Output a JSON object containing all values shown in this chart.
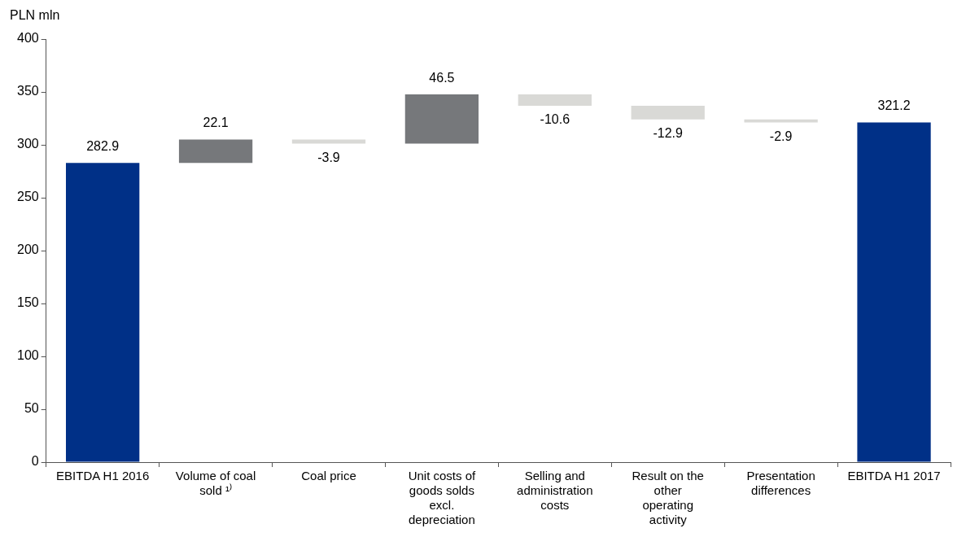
{
  "chart_data": {
    "type": "bar",
    "ylabel": "PLN mln",
    "categories": [
      "EBITDA H1 2016",
      "Volume of coal sold ¹⁾",
      "Coal price",
      "Unit costs of goods solds excl. depreciation",
      "Selling and administration costs",
      "Result on the other operating activity",
      "Presentation differences",
      "EBITDA H1 2017"
    ],
    "values": [
      282.9,
      22.1,
      -3.9,
      46.5,
      -10.6,
      -12.9,
      -2.9,
      321.2
    ],
    "base": [
      0,
      282.9,
      305,
      301.1,
      347.6,
      337,
      324.1,
      0
    ],
    "colors": [
      "#003087",
      "#76787b",
      "#d9d9d6",
      "#76787b",
      "#d9d9d6",
      "#d9d9d6",
      "#d9d9d6",
      "#003087"
    ],
    "ylim": [
      0,
      400
    ],
    "yticks": [
      0,
      50,
      100,
      150,
      200,
      250,
      300,
      350,
      400
    ],
    "grid": false,
    "legend": false,
    "data_labels": true
  }
}
